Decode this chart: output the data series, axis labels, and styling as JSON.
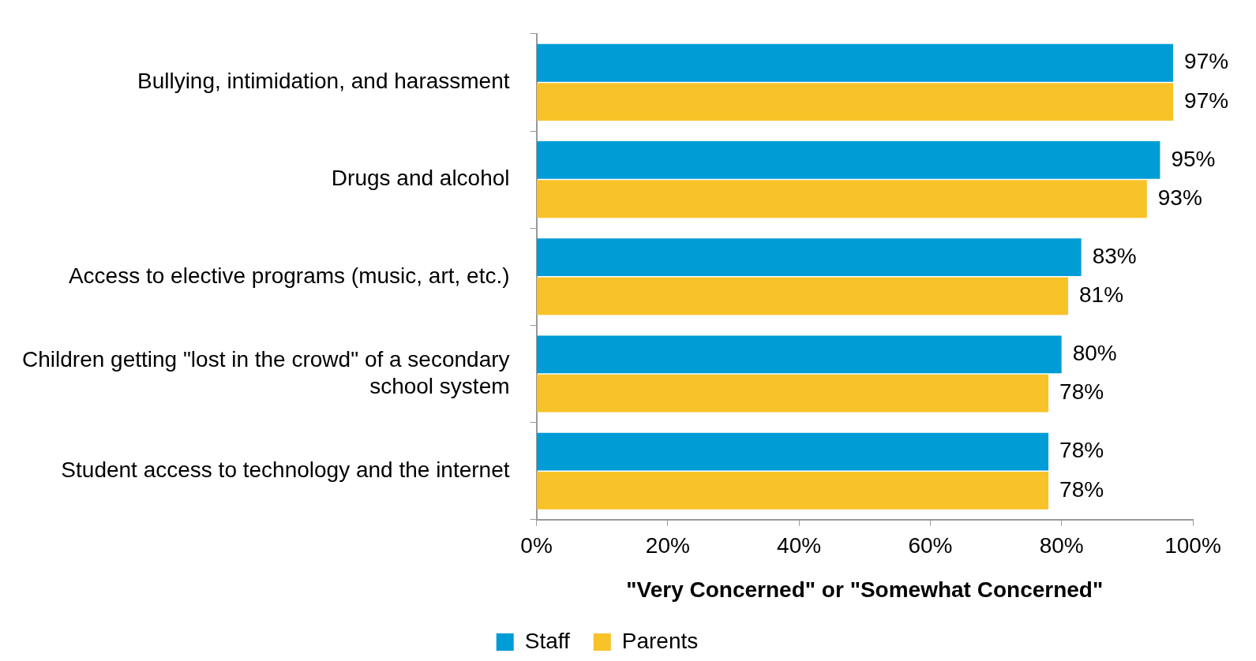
{
  "chart_data": {
    "type": "bar",
    "orientation": "horizontal",
    "xlabel": "\"Very Concerned\" or \"Somewhat Concerned\"",
    "categories": [
      "Bullying, intimidation, and harassment",
      "Drugs and alcohol",
      "Access to elective programs (music, art, etc.)",
      "Children getting \"lost in the crowd\" of a secondary school system",
      "Student access to technology and the internet"
    ],
    "series": [
      {
        "name": "Staff",
        "color": "#009cd6",
        "values": [
          97,
          95,
          83,
          80,
          78
        ],
        "value_labels": [
          "97%",
          "95%",
          "83%",
          "80%",
          "78%"
        ]
      },
      {
        "name": "Parents",
        "color": "#f8c229",
        "values": [
          97,
          93,
          81,
          78,
          78
        ],
        "value_labels": [
          "97%",
          "93%",
          "81%",
          "78%",
          "78%"
        ]
      }
    ],
    "xlim": [
      0,
      100
    ],
    "xticks": [
      {
        "value": 0,
        "label": "0%"
      },
      {
        "value": 20,
        "label": "20%"
      },
      {
        "value": 40,
        "label": "40%"
      },
      {
        "value": 60,
        "label": "60%"
      },
      {
        "value": 80,
        "label": "80%"
      },
      {
        "value": 100,
        "label": "100%"
      }
    ],
    "grid": false,
    "legend": "bottom"
  }
}
